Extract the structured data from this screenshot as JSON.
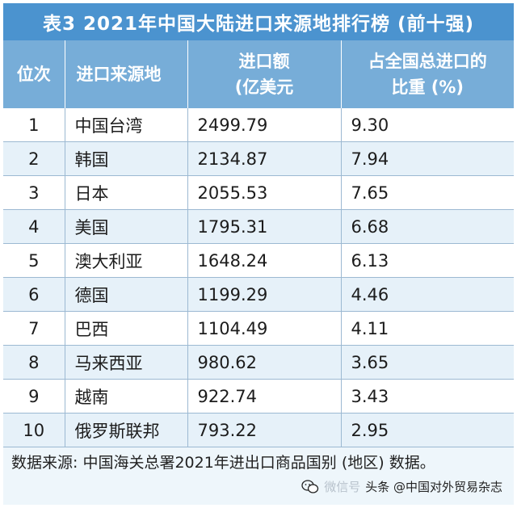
{
  "title": "表3   2021年中国大陆进口来源地排行榜 (前十强)",
  "columns": [
    {
      "line1": "位次",
      "line2": ""
    },
    {
      "line1": "进口来源地",
      "line2": ""
    },
    {
      "line1": "进口额",
      "line2": "(亿美元"
    },
    {
      "line1": "占全国总进口的",
      "line2": "比重 (%)"
    }
  ],
  "rows": [
    {
      "rank": "1",
      "source": "中国台湾",
      "amount": "2499.79",
      "share": "9.30"
    },
    {
      "rank": "2",
      "source": "韩国",
      "amount": "2134.87",
      "share": "7.94"
    },
    {
      "rank": "3",
      "source": "日本",
      "amount": "2055.53",
      "share": "7.65"
    },
    {
      "rank": "4",
      "source": "美国",
      "amount": "1795.31",
      "share": "6.68"
    },
    {
      "rank": "5",
      "source": "澳大利亚",
      "amount": "1648.24",
      "share": "6.13"
    },
    {
      "rank": "6",
      "source": "德国",
      "amount": "1199.29",
      "share": "4.46"
    },
    {
      "rank": "7",
      "source": "巴西",
      "amount": "1104.49",
      "share": "4.11"
    },
    {
      "rank": "8",
      "source": "马来西亚",
      "amount": "980.62",
      "share": "3.65"
    },
    {
      "rank": "9",
      "source": "越南",
      "amount": "922.74",
      "share": "3.43"
    },
    {
      "rank": "10",
      "source": "俄罗斯联邦",
      "amount": "793.22",
      "share": "2.95"
    }
  ],
  "footnote": "数据来源: 中国海关总署2021年进出口商品国别 (地区) 数据。",
  "watermark": {
    "faint_text": "微信号",
    "text": "头条 @中国对外贸易杂志",
    "icon": "wechat-icon"
  }
}
